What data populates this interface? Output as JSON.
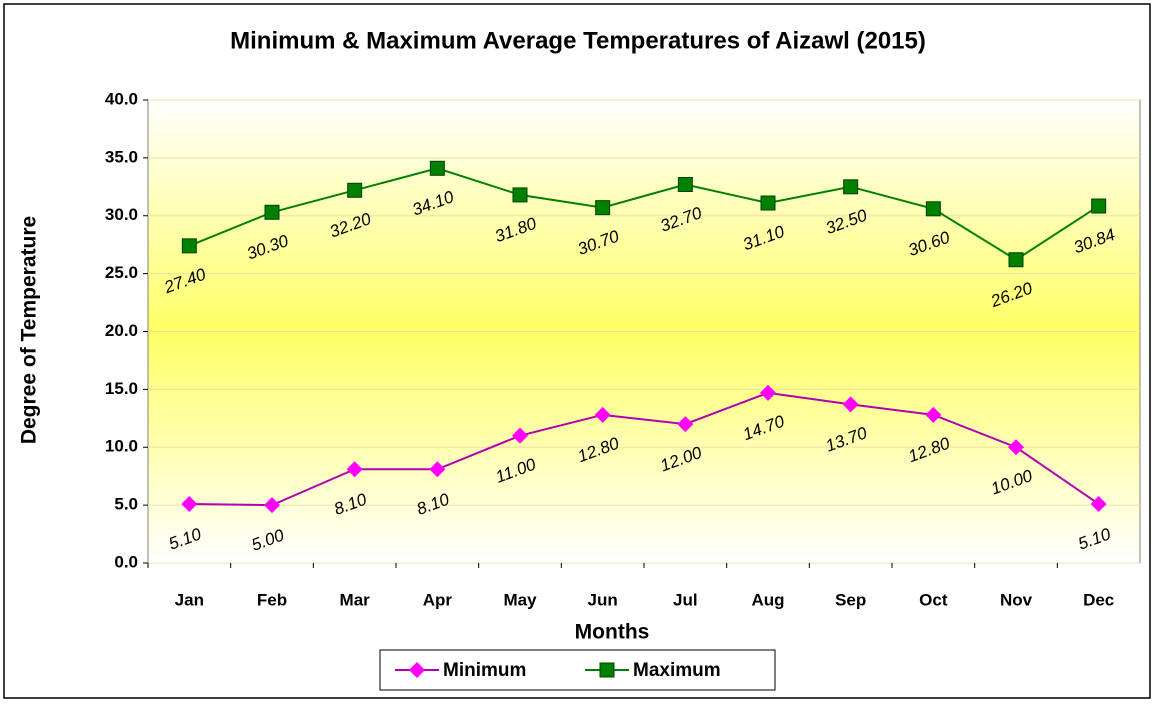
{
  "chart_data": {
    "type": "line",
    "title": "Minimum & Maximum Average Temperatures  of Aizawl (2015)",
    "x_label": "Months",
    "y_label": "Degree of Temperature",
    "categories": [
      "Jan",
      "Feb",
      "Mar",
      "Apr",
      "May",
      "Jun",
      "Jul",
      "Aug",
      "Sep",
      "Oct",
      "Nov",
      "Dec"
    ],
    "series": [
      {
        "name": "Minimum",
        "color": "#b000b0",
        "marker_color": "#ff00ff",
        "marker": "diamond",
        "values": [
          5.1,
          5.0,
          8.1,
          8.1,
          11.0,
          12.8,
          12.0,
          14.7,
          13.7,
          12.8,
          10.0,
          5.1
        ],
        "value_labels": [
          "5.10",
          "5.00",
          "8.10",
          "8.10",
          "11.00",
          "12.80",
          "12.00",
          "14.70",
          "13.70",
          "12.80",
          "10.00",
          "5.10"
        ]
      },
      {
        "name": "Maximum",
        "color": "#008000",
        "marker_color": "#008000",
        "marker": "square",
        "values": [
          27.4,
          30.3,
          32.2,
          34.1,
          31.8,
          30.7,
          32.7,
          31.1,
          32.5,
          30.6,
          26.2,
          30.84
        ],
        "value_labels": [
          "27.40",
          "30.30",
          "32.20",
          "34.10",
          "31.80",
          "30.70",
          "32.70",
          "31.10",
          "32.50",
          "30.60",
          "26.20",
          "30.84"
        ]
      }
    ],
    "ylim": [
      0,
      40
    ],
    "yticks": [
      {
        "value": 0,
        "label": "0.0"
      },
      {
        "value": 5,
        "label": "5.0"
      },
      {
        "value": 10,
        "label": "10.0"
      },
      {
        "value": 15,
        "label": "15.0"
      },
      {
        "value": 20,
        "label": "20.0"
      },
      {
        "value": 25,
        "label": "25.0"
      },
      {
        "value": 30,
        "label": "30.0"
      },
      {
        "value": 35,
        "label": "35.0"
      },
      {
        "value": 40,
        "label": "40.0"
      }
    ],
    "grid": true,
    "legend": "bottom"
  }
}
